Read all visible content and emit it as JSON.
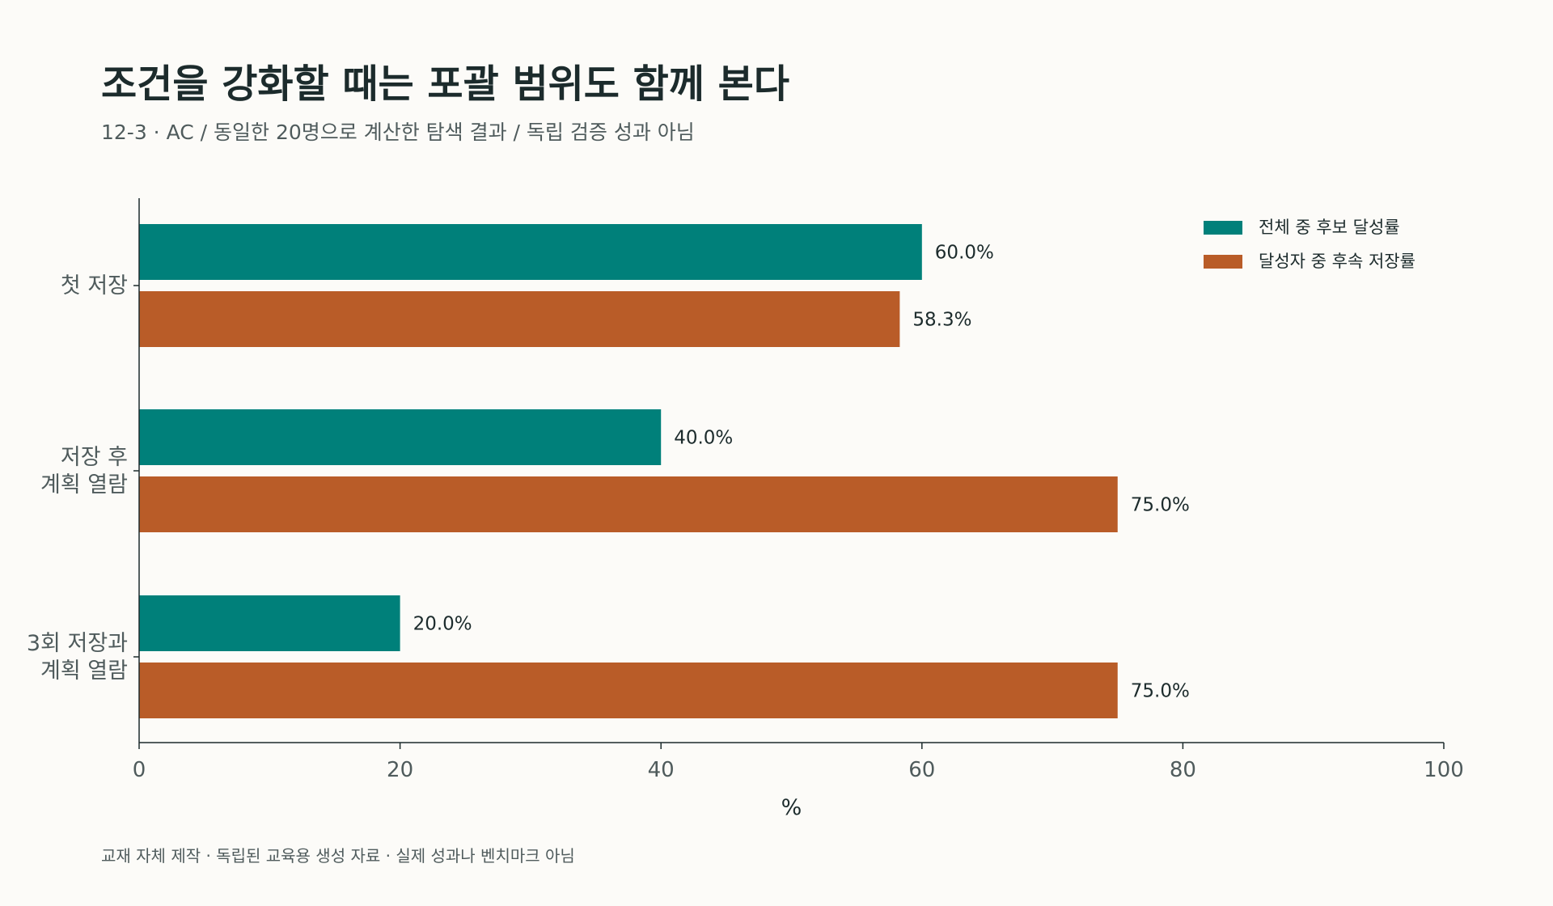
{
  "title": "조건을 강화할 때는 포괄 범위도 함께 본다",
  "subtitle": "12-3 · AC / 동일한 20명으로 계산한 탐색 결과 / 독립 검증 성과 아님",
  "footer": "교재 자체 제작 · 독립된 교육용 생성 자료 · 실제 성과나 벤치마크 아님",
  "colors": {
    "background": "#fcfbf8",
    "series1": "#00807a",
    "series2": "#b95c28",
    "axis": "#1c2b2c",
    "text_muted": "#4f5b5c"
  },
  "chart_data": {
    "type": "bar",
    "orientation": "horizontal",
    "categories": [
      [
        "첫 저장"
      ],
      [
        "저장 후",
        "계획 열람"
      ],
      [
        "3회 저장과",
        "계획 열람"
      ]
    ],
    "series": [
      {
        "name": "전체 중 후보 달성률",
        "values": [
          60.0,
          40.0,
          20.0
        ]
      },
      {
        "name": "달성자 중 후속 저장률",
        "values": [
          58.3,
          75.0,
          75.0
        ]
      }
    ],
    "xlabel": "%",
    "ylabel": "",
    "xlim": [
      0,
      100
    ],
    "xticks": [
      0,
      20,
      40,
      60,
      80,
      100
    ],
    "value_suffix": "%",
    "grid": false,
    "legend": "top-right"
  }
}
